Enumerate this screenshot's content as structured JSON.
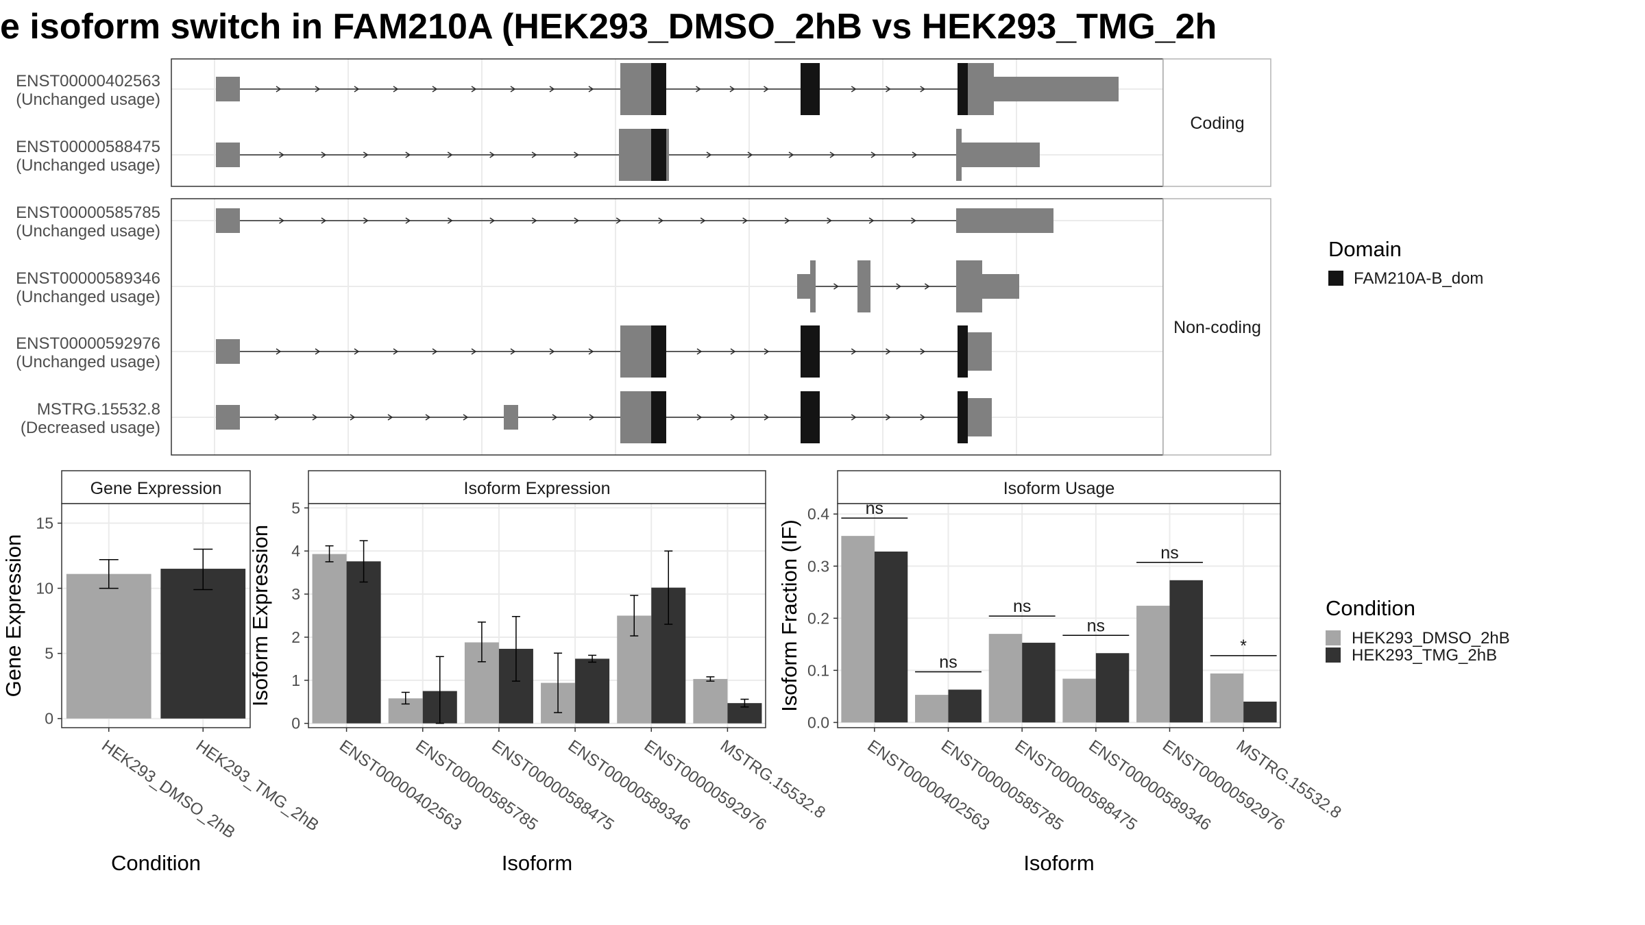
{
  "title": "e isoform switch in FAM210A (HEK293_DMSO_2hB vs HEK293_TMG_2h",
  "colors": {
    "dmso": "#a6a6a6",
    "tmg": "#333333",
    "exon": "#808080",
    "domain": "#141414",
    "grid": "#ebebeb",
    "strip": "#ffffff"
  },
  "domain_legend": {
    "title": "Domain",
    "items": [
      "FAM210A-B_dom"
    ]
  },
  "condition_legend": {
    "title": "Condition",
    "items": [
      "HEK293_DMSO_2hB",
      "HEK293_TMG_2hB"
    ]
  },
  "chart_data": [
    {
      "type": "gene_structure",
      "facets": [
        "Coding",
        "Non-coding"
      ],
      "isoforms": [
        {
          "id": "ENST00000402563",
          "usage": "(Unchanged usage)",
          "facet": "Coding"
        },
        {
          "id": "ENST00000588475",
          "usage": "(Unchanged usage)",
          "facet": "Coding"
        },
        {
          "id": "ENST00000585785",
          "usage": "(Unchanged usage)",
          "facet": "Non-coding"
        },
        {
          "id": "ENST00000589346",
          "usage": "(Unchanged usage)",
          "facet": "Non-coding"
        },
        {
          "id": "ENST00000592976",
          "usage": "(Unchanged usage)",
          "facet": "Non-coding"
        },
        {
          "id": "MSTRG.15532.8",
          "usage": "(Decreased usage)",
          "facet": "Non-coding"
        }
      ]
    },
    {
      "type": "bar",
      "title": "Gene Expression",
      "xlabel": "Condition",
      "ylabel": "Gene Expression",
      "ylim": [
        -0.7,
        16.5
      ],
      "yticks": [
        "0",
        "5",
        "10",
        "15"
      ],
      "categories": [
        "HEK293_DMSO_2hB",
        "HEK293_TMG_2hB"
      ],
      "values": [
        11.1,
        11.5
      ],
      "err_low": [
        10.0,
        9.9
      ],
      "err_high": [
        12.2,
        13.0
      ]
    },
    {
      "type": "bar",
      "title": "Isoform Expression",
      "xlabel": "Isoform",
      "ylabel": "Isoform Expression",
      "ylim": [
        -0.1,
        5.1
      ],
      "yticks": [
        "0",
        "1",
        "2",
        "3",
        "4",
        "5"
      ],
      "categories": [
        "ENST00000402563",
        "ENST00000585785",
        "ENST00000588475",
        "ENST00000589346",
        "ENST00000592976",
        "MSTRG.15532.8"
      ],
      "series": [
        {
          "name": "HEK293_DMSO_2hB",
          "values": [
            3.93,
            0.58,
            1.88,
            0.94,
            2.5,
            1.03
          ],
          "err_low": [
            3.75,
            0.45,
            1.43,
            0.25,
            2.03,
            0.98
          ],
          "err_high": [
            4.12,
            0.72,
            2.35,
            1.63,
            2.97,
            1.08
          ]
        },
        {
          "name": "HEK293_TMG_2hB",
          "values": [
            3.76,
            0.75,
            1.73,
            1.5,
            3.15,
            0.47
          ],
          "err_low": [
            3.28,
            0.0,
            0.98,
            1.42,
            2.3,
            0.38
          ],
          "err_high": [
            4.24,
            1.55,
            2.48,
            1.58,
            4.0,
            0.56
          ]
        }
      ]
    },
    {
      "type": "bar",
      "title": "Isoform Usage",
      "xlabel": "Isoform",
      "ylabel": "Isoform Fraction (IF)",
      "ylim": [
        -0.01,
        0.42
      ],
      "yticks": [
        "0.0",
        "0.1",
        "0.2",
        "0.3",
        "0.4"
      ],
      "categories": [
        "ENST00000402563",
        "ENST00000585785",
        "ENST00000588475",
        "ENST00000589346",
        "ENST00000592976",
        "MSTRG.15532.8"
      ],
      "series": [
        {
          "name": "HEK293_DMSO_2hB",
          "values": [
            0.358,
            0.053,
            0.17,
            0.084,
            0.224,
            0.094
          ]
        },
        {
          "name": "HEK293_TMG_2hB",
          "values": [
            0.328,
            0.063,
            0.153,
            0.133,
            0.273,
            0.04
          ]
        }
      ],
      "significance": [
        "ns",
        "ns",
        "ns",
        "ns",
        "ns",
        "*"
      ]
    }
  ]
}
